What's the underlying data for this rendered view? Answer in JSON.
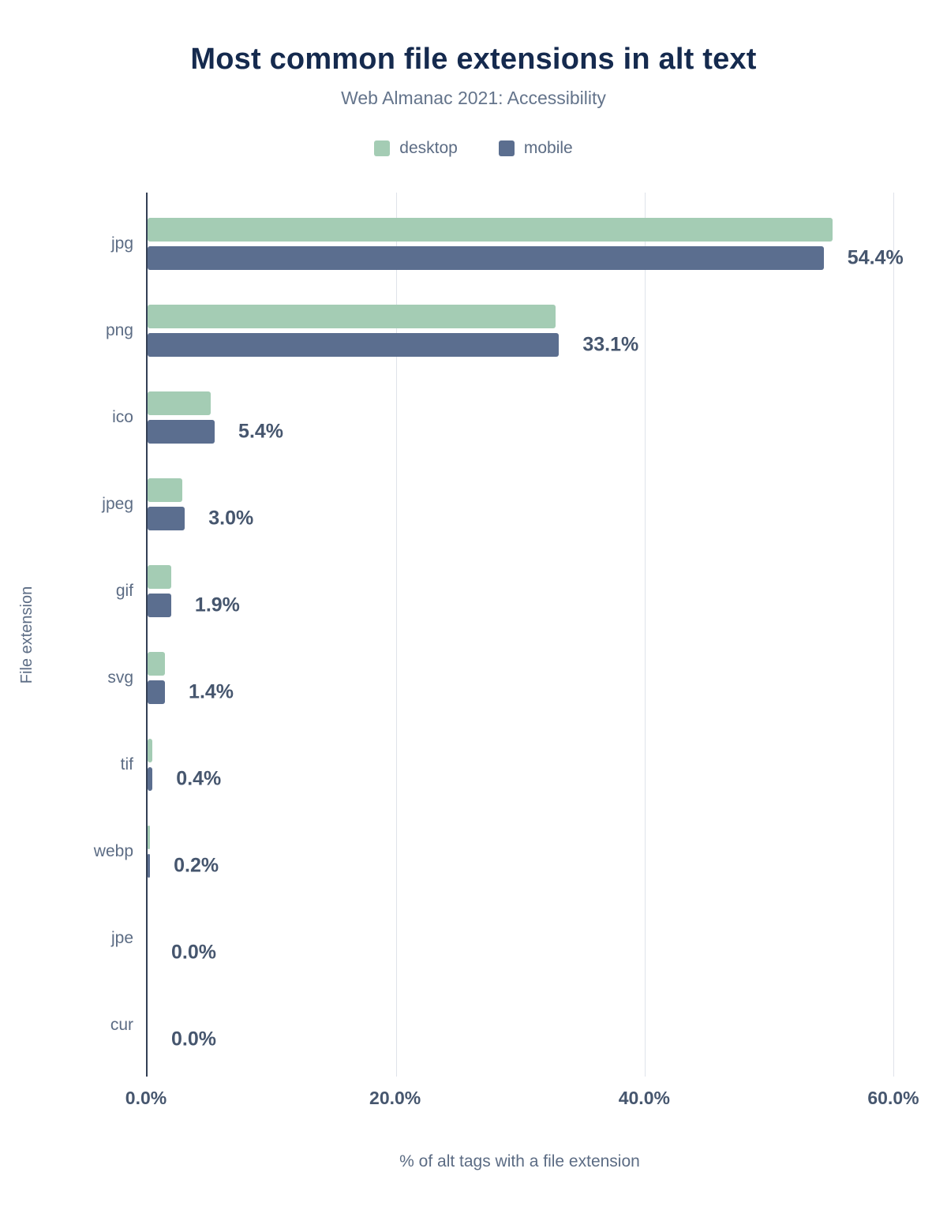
{
  "title": "Most common file extensions in alt text",
  "subtitle": "Web Almanac 2021: Accessibility",
  "legend": [
    {
      "label": "desktop",
      "color": "#a4ccb4"
    },
    {
      "label": "mobile",
      "color": "#5b6e8f"
    }
  ],
  "chart_data": {
    "type": "bar",
    "orientation": "horizontal",
    "title": "Most common file extensions in alt text",
    "subtitle": "Web Almanac 2021: Accessibility",
    "categories": [
      "jpg",
      "png",
      "ico",
      "jpeg",
      "gif",
      "svg",
      "tif",
      "webp",
      "jpe",
      "cur"
    ],
    "series": [
      {
        "name": "desktop",
        "color": "#a4ccb4",
        "values": [
          55.1,
          32.8,
          5.1,
          2.8,
          1.9,
          1.4,
          0.4,
          0.2,
          0.0,
          0.0
        ]
      },
      {
        "name": "mobile",
        "color": "#5b6e8f",
        "values": [
          54.4,
          33.1,
          5.4,
          3.0,
          1.9,
          1.4,
          0.4,
          0.2,
          0.0,
          0.0
        ]
      }
    ],
    "value_labels": [
      "54.4%",
      "33.1%",
      "5.4%",
      "3.0%",
      "1.9%",
      "1.4%",
      "0.4%",
      "0.2%",
      "0.0%",
      "0.0%"
    ],
    "xlabel": "% of alt tags with a file extension",
    "ylabel": "File extension",
    "xlim": [
      0,
      60
    ],
    "xticks": [
      "0.0%",
      "20.0%",
      "40.0%",
      "60.0%"
    ],
    "xtick_values": [
      0,
      20,
      40,
      60
    ],
    "grid": "vertical",
    "legend_position": "top"
  }
}
